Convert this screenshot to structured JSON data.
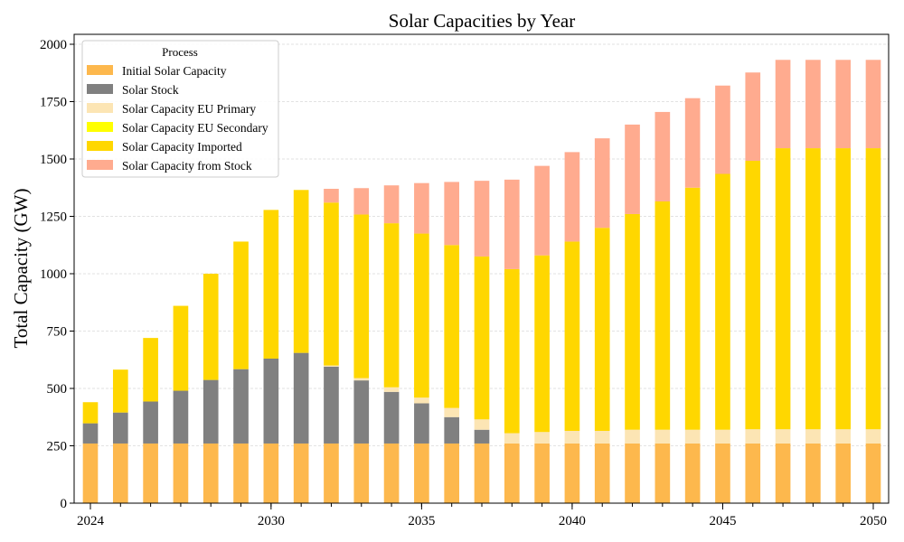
{
  "chart_data": {
    "type": "bar",
    "stacked": true,
    "title": "Solar Capacities by Year",
    "xlabel": "",
    "ylabel": "Total Capacity (GW)",
    "ylim": [
      0,
      2000
    ],
    "yticks": [
      0,
      250,
      500,
      750,
      1000,
      1250,
      1500,
      1750,
      2000
    ],
    "xtick_labels": [
      {
        "index": 0,
        "label": "2024"
      },
      {
        "index": 6,
        "label": "2030"
      },
      {
        "index": 11,
        "label": "2035"
      },
      {
        "index": 16,
        "label": "2040"
      },
      {
        "index": 21,
        "label": "2045"
      },
      {
        "index": 26,
        "label": "2050"
      }
    ],
    "grid": "horizontal dashed",
    "legend_title": "Process",
    "legend_position": "top-left",
    "categories": [
      "2024",
      "2025",
      "2026",
      "2027",
      "2028",
      "2029",
      "2030",
      "2031",
      "2032",
      "2033",
      "2034",
      "2035",
      "2036",
      "2037",
      "2038",
      "2039",
      "2040",
      "2041",
      "2042",
      "2043",
      "2044",
      "2045",
      "2046",
      "2047",
      "2048",
      "2049",
      "2050"
    ],
    "series": [
      {
        "name": "Initial Solar Capacity",
        "color": "#FDB84D",
        "values": [
          260,
          260,
          260,
          260,
          260,
          260,
          260,
          260,
          260,
          260,
          260,
          260,
          260,
          260,
          260,
          260,
          260,
          260,
          260,
          260,
          260,
          260,
          260,
          260,
          260,
          260,
          260
        ]
      },
      {
        "name": "Solar Stock",
        "color": "#808080",
        "values": [
          88,
          135,
          183,
          230,
          277,
          324,
          370,
          395,
          335,
          275,
          225,
          175,
          115,
          60,
          0,
          0,
          0,
          0,
          0,
          0,
          0,
          0,
          0,
          0,
          0,
          0,
          0
        ]
      },
      {
        "name": "Solar Capacity EU Primary",
        "color": "#FCE5B4",
        "values": [
          0,
          0,
          0,
          0,
          0,
          0,
          0,
          0,
          5,
          10,
          20,
          25,
          40,
          45,
          45,
          50,
          55,
          55,
          60,
          60,
          60,
          60,
          62,
          62,
          62,
          62,
          62
        ]
      },
      {
        "name": "Solar Capacity EU Secondary",
        "color": "#FFFF00",
        "values": [
          0,
          0,
          0,
          0,
          0,
          0,
          0,
          0,
          0,
          0,
          0,
          0,
          0,
          0,
          0,
          0,
          0,
          0,
          0,
          0,
          0,
          0,
          0,
          0,
          0,
          0,
          0
        ]
      },
      {
        "name": "Solar Capacity Imported",
        "color": "#FFD700",
        "values": [
          92,
          187,
          277,
          370,
          463,
          556,
          648,
          710,
          710,
          713,
          715,
          715,
          710,
          710,
          715,
          770,
          825,
          885,
          940,
          995,
          1055,
          1115,
          1170,
          1225,
          1225,
          1225,
          1225
        ]
      },
      {
        "name": "Solar Capacity from Stock",
        "color": "#FFAB8F",
        "values": [
          0,
          0,
          0,
          0,
          0,
          0,
          0,
          0,
          60,
          115,
          165,
          220,
          275,
          330,
          390,
          390,
          390,
          390,
          390,
          390,
          390,
          385,
          385,
          385,
          385,
          385,
          385
        ]
      }
    ]
  }
}
